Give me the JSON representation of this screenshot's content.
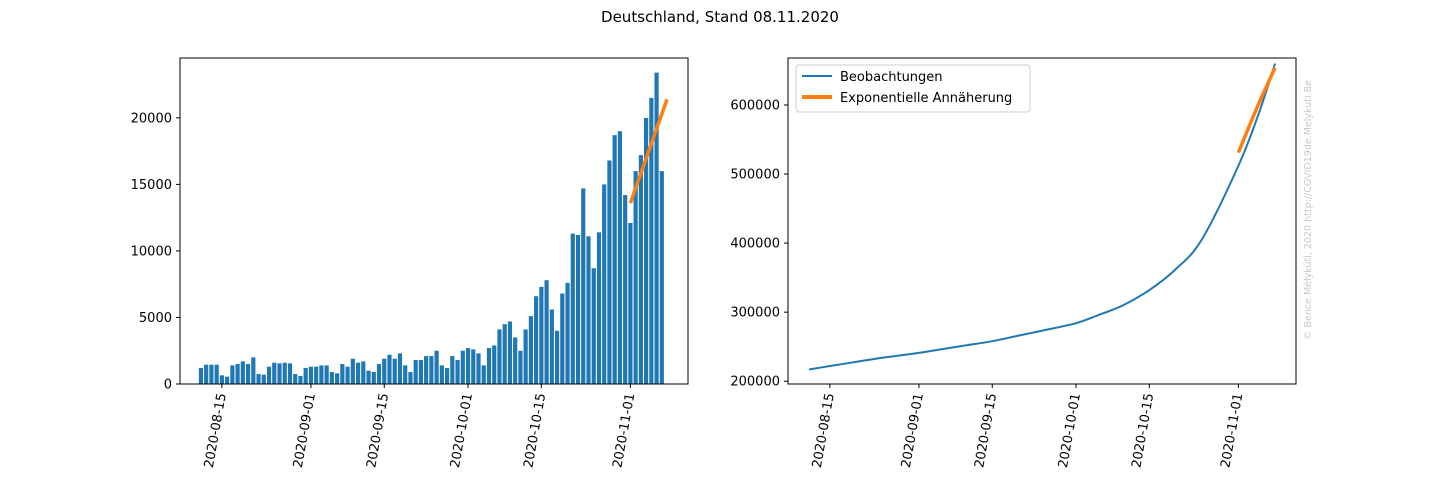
{
  "figure": {
    "suptitle": "Deutschland, Stand 08.11.2020",
    "watermark": "© Bence Mélykúti, 2020  http://COVID19de.Melykuti.Be"
  },
  "colors": {
    "blue": "#1f77b4",
    "orange": "#ff7f0e"
  },
  "chart_data": [
    {
      "type": "bar",
      "title": "",
      "xlabel": "",
      "ylabel": "",
      "x_start": "2020-08-11",
      "x_end": "2020-11-08",
      "xlim": [
        "2020-08-07",
        "2020-11-12"
      ],
      "ylim": [
        0,
        24500
      ],
      "x_ticks": [
        "2020-08-15",
        "2020-09-01",
        "2020-09-15",
        "2020-10-01",
        "2020-10-15",
        "2020-11-01"
      ],
      "y_ticks": [
        0,
        5000,
        10000,
        15000,
        20000
      ],
      "y_tick_labels": [
        "0",
        "5000",
        "10000",
        "15000",
        "20000"
      ],
      "values": [
        1200,
        1450,
        1450,
        1450,
        650,
        550,
        1400,
        1500,
        1700,
        1500,
        2000,
        750,
        700,
        1300,
        1600,
        1550,
        1600,
        1550,
        750,
        600,
        1200,
        1300,
        1300,
        1400,
        1400,
        900,
        800,
        1500,
        1300,
        1900,
        1600,
        1700,
        1000,
        900,
        1500,
        1900,
        2200,
        1900,
        2300,
        1400,
        900,
        1800,
        1800,
        2100,
        2100,
        2500,
        1400,
        1200,
        2100,
        1800,
        2500,
        2700,
        2600,
        2300,
        1400,
        2700,
        2900,
        4100,
        4500,
        4700,
        3500,
        2500,
        4100,
        5100,
        6600,
        7300,
        7800,
        5600,
        4000,
        6800,
        7600,
        11300,
        11200,
        14700,
        11100,
        8700,
        11400,
        15000,
        16800,
        18700,
        19000,
        14200,
        12100,
        16000,
        17200,
        20000,
        21500,
        23400,
        16000
      ],
      "series": [
        {
          "name": "",
          "type": "line",
          "x": [
            "2020-11-01",
            "2020-11-08"
          ],
          "y": [
            13600,
            21400
          ]
        }
      ]
    },
    {
      "type": "line",
      "title": "",
      "xlabel": "",
      "ylabel": "",
      "xlim": [
        "2020-08-07",
        "2020-11-12"
      ],
      "ylim": [
        196000,
        668000
      ],
      "x_ticks": [
        "2020-08-15",
        "2020-09-01",
        "2020-09-15",
        "2020-10-01",
        "2020-10-15",
        "2020-11-01"
      ],
      "y_ticks": [
        200000,
        300000,
        400000,
        500000,
        600000
      ],
      "y_tick_labels": [
        "200000",
        "300000",
        "400000",
        "500000",
        "600000"
      ],
      "legend_position": "upper-left",
      "series": [
        {
          "name": "Beobachtungen",
          "color": "#1f77b4",
          "x": [
            "2020-08-11",
            "2020-08-15",
            "2020-08-20",
            "2020-08-25",
            "2020-09-01",
            "2020-09-05",
            "2020-09-10",
            "2020-09-15",
            "2020-09-20",
            "2020-09-25",
            "2020-10-01",
            "2020-10-05",
            "2020-10-10",
            "2020-10-15",
            "2020-10-20",
            "2020-10-25",
            "2020-11-01",
            "2020-11-05",
            "2020-11-08"
          ],
          "y": [
            217000,
            222000,
            228000,
            234000,
            241000,
            246000,
            252000,
            258000,
            266000,
            274000,
            284000,
            295000,
            310000,
            332000,
            362000,
            405000,
            512000,
            590000,
            660000
          ]
        },
        {
          "name": "Exponentielle Annäherung",
          "color": "#ff7f0e",
          "x": [
            "2020-11-01",
            "2020-11-03",
            "2020-11-05",
            "2020-11-08"
          ],
          "y": [
            531000,
            568000,
            604000,
            654000
          ]
        }
      ]
    }
  ]
}
